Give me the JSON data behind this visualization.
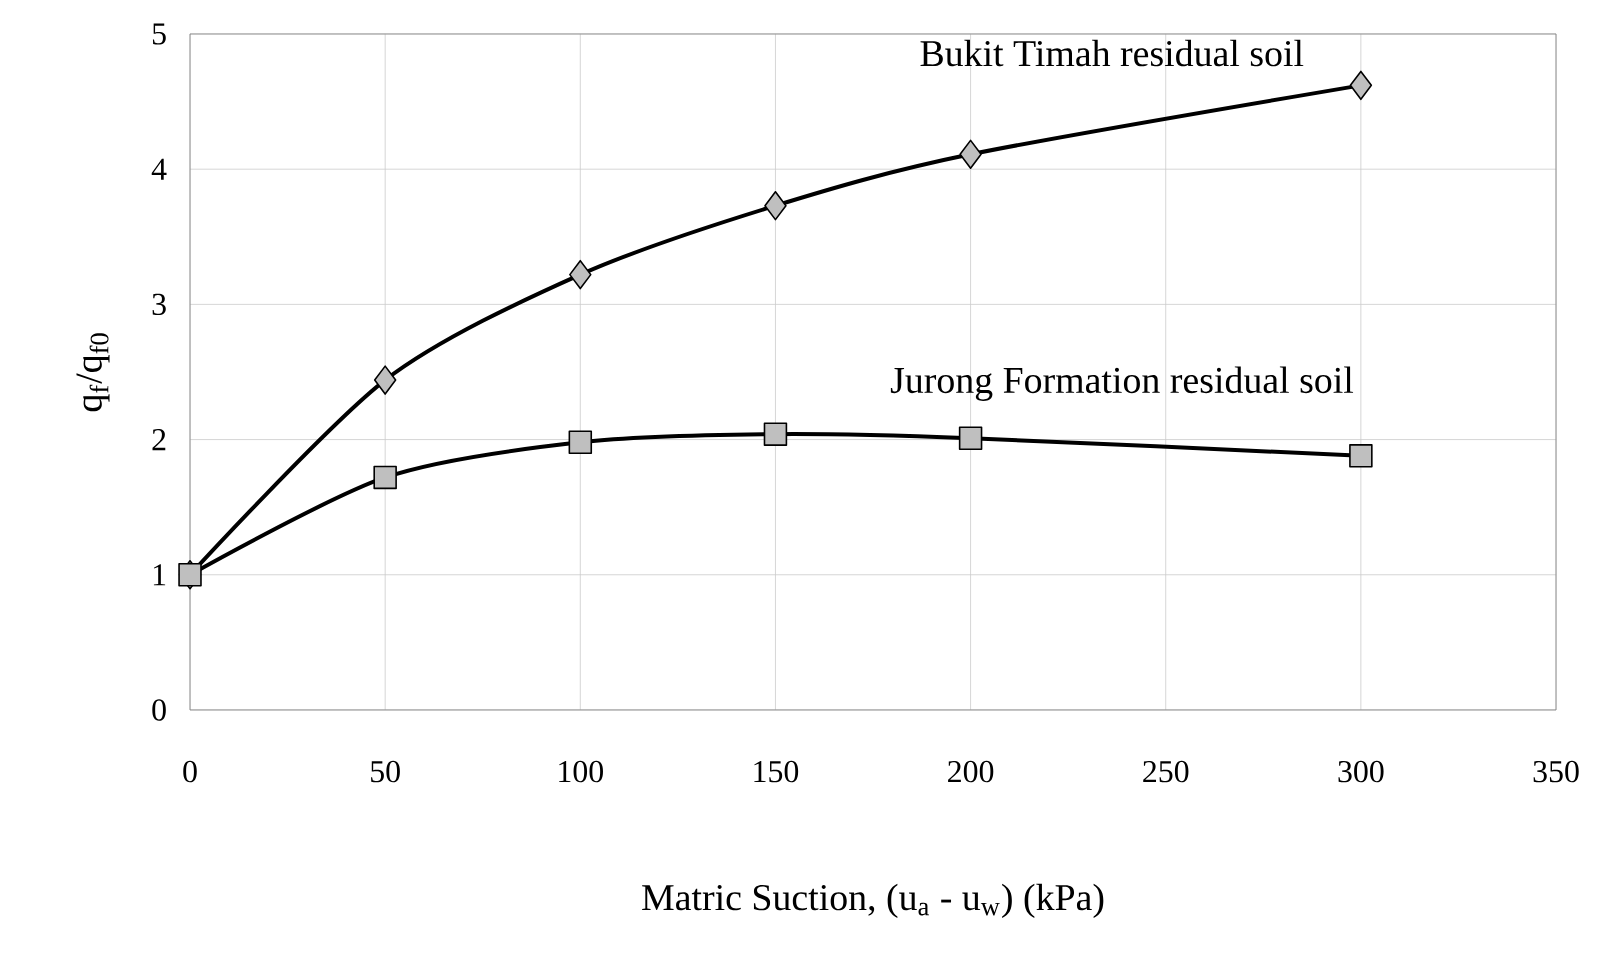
{
  "chart_data": {
    "type": "line",
    "xlabel": "Matric Suction, (u$_{a}$ - u$_{w}$) (kPa)",
    "ylabel": "q$_{f}$/q$_{f0}$",
    "x": [
      0,
      50,
      100,
      150,
      200,
      300
    ],
    "series": [
      {
        "name": "Bukit Timah residual soil",
        "color": "#000000",
        "marker": "diamond",
        "values": [
          1,
          2.44,
          3.22,
          3.73,
          4.11,
          4.62
        ]
      },
      {
        "name": "Jurong Formation residual soil",
        "color": "#000000",
        "marker": "square",
        "values": [
          1,
          1.72,
          1.98,
          2.04,
          2.01,
          1.88
        ]
      }
    ],
    "xlim": [
      0,
      350
    ],
    "xticks": [
      0,
      50,
      100,
      150,
      200,
      250,
      300,
      350
    ],
    "ylim": [
      0,
      5
    ],
    "yticks": [
      0,
      1,
      2,
      3,
      4,
      5
    ],
    "grid": true,
    "line_style": "solid"
  }
}
